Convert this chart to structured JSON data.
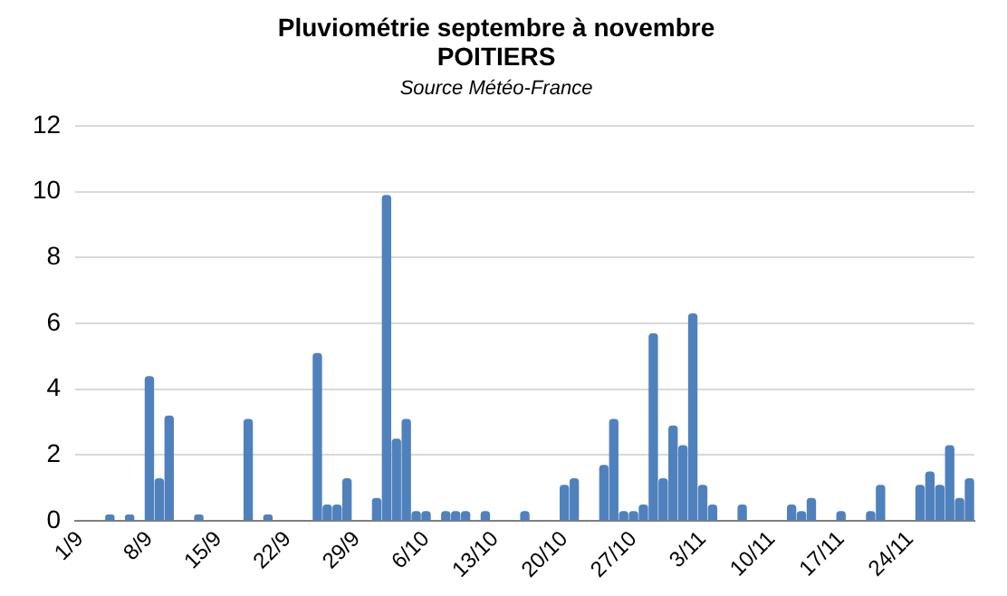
{
  "chart_data": {
    "type": "bar",
    "title": "Pluviométrie septembre à novembre\nPOITIERS",
    "annotations": [
      "Source Météo-France"
    ],
    "categories": [
      "1/9",
      null,
      null,
      null,
      null,
      null,
      null,
      "8/9",
      null,
      null,
      null,
      null,
      null,
      null,
      "15/9",
      null,
      null,
      null,
      null,
      null,
      null,
      "22/9",
      null,
      null,
      null,
      null,
      null,
      null,
      "29/9",
      null,
      null,
      null,
      null,
      null,
      null,
      "6/10",
      null,
      null,
      null,
      null,
      null,
      null,
      "13/10",
      null,
      null,
      null,
      null,
      null,
      null,
      "20/10",
      null,
      null,
      null,
      null,
      null,
      null,
      "27/10",
      null,
      null,
      null,
      null,
      null,
      null,
      "3/11",
      null,
      null,
      null,
      null,
      null,
      null,
      "10/11",
      null,
      null,
      null,
      null,
      null,
      null,
      "17/11",
      null,
      null,
      null,
      null,
      null,
      null,
      "24/11",
      null,
      null,
      null,
      null,
      null,
      null
    ],
    "values": [
      0,
      0,
      0,
      0.2,
      0,
      0.2,
      0,
      4.4,
      1.3,
      3.2,
      0,
      0,
      0.2,
      0,
      0,
      0,
      0,
      3.1,
      0,
      0.2,
      0,
      0,
      0,
      0,
      5.1,
      0.5,
      0.5,
      1.3,
      0,
      0,
      0.7,
      9.9,
      2.5,
      3.1,
      0.3,
      0.3,
      0,
      0.3,
      0.3,
      0.3,
      0,
      0.3,
      0,
      0,
      0,
      0.3,
      0,
      0,
      0,
      1.1,
      1.3,
      0,
      0,
      1.7,
      3.1,
      0.3,
      0.3,
      0.5,
      5.7,
      1.3,
      2.9,
      2.3,
      6.3,
      1.1,
      0.5,
      0,
      0,
      0.5,
      0,
      0,
      0,
      0,
      0.5,
      0.3,
      0.7,
      0,
      0,
      0.3,
      0,
      0,
      0.3,
      1.1,
      0,
      0,
      0,
      1.1,
      1.5,
      1.1,
      2.3,
      0.7,
      1.3
    ],
    "color": "#4f81bd",
    "ylim": [
      0,
      12
    ],
    "yticks": [
      0,
      2,
      4,
      6,
      8,
      10,
      12
    ],
    "grid": "y",
    "legend": false
  }
}
